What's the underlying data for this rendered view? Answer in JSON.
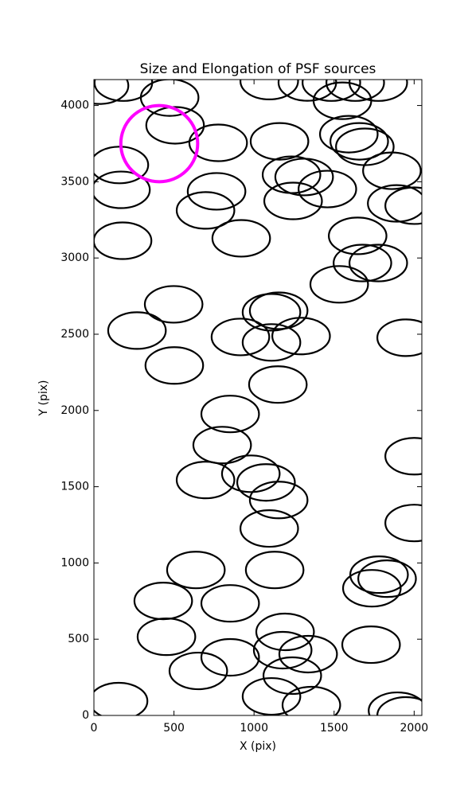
{
  "chart_data": {
    "type": "ellipse",
    "title": "Size and Elongation of PSF sources",
    "x_label": "X (pix)",
    "y_label": "Y (pix)",
    "xlim": [
      0,
      2048
    ],
    "ylim": [
      0,
      4170
    ],
    "xticks": [
      0,
      500,
      1000,
      1500,
      2000
    ],
    "yticks": [
      0,
      500,
      1000,
      1500,
      2000,
      2500,
      3000,
      3500,
      4000
    ],
    "sources": {
      "color": "#000000",
      "width": 360,
      "height": 240,
      "x": [
        35,
        184,
        473,
        507,
        1095,
        159,
        169,
        179,
        776,
        766,
        697,
        920,
        1159,
        1234,
        1313,
        1244,
        1458,
        1333,
        1552,
        1483,
        1632,
        1776,
        1592,
        1657,
        1692,
        1861,
        1891,
        2000,
        1647,
        1677,
        1776,
        1532,
        498,
        269,
        502,
        915,
        1109,
        1154,
        1109,
        1294,
        1149,
        1950,
        851,
        801,
        697,
        980,
        1075,
        1154,
        1095,
        2000,
        2000,
        637,
        1129,
        433,
        851,
        453,
        1194,
        1179,
        1338,
        851,
        652,
        1239,
        1731,
        1781,
        1831,
        1736,
        154,
        1109,
        1358,
        1896,
        1950
      ],
      "y": [
        4130,
        4150,
        4052,
        3870,
        4160,
        3610,
        3447,
        3113,
        3755,
        3437,
        3312,
        3129,
        3765,
        3546,
        3531,
        3374,
        3452,
        4151,
        4031,
        4150,
        4150,
        4150,
        3812,
        3765,
        3729,
        3572,
        3358,
        3343,
        3145,
        2967,
        2967,
        2827,
        2696,
        2524,
        2295,
        2482,
        2644,
        2654,
        2446,
        2488,
        2170,
        2477,
        1977,
        1773,
        1544,
        1585,
        1528,
        1413,
        1226,
        1700,
        1262,
        954,
        954,
        751,
        735,
        516,
        548,
        428,
        402,
        381,
        292,
        261,
        464,
        923,
        897,
        834,
        94,
        125,
        68,
        31,
        0
      ]
    },
    "highlight": {
      "x": 408,
      "y": 3750,
      "width": 480,
      "height": 500,
      "color": "#ff00ff"
    }
  }
}
